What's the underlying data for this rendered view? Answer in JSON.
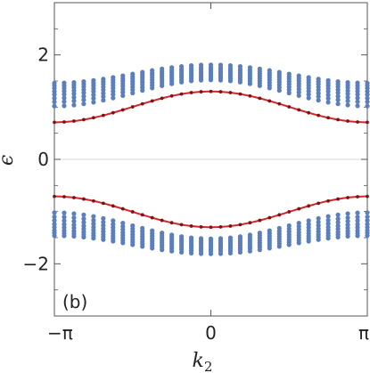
{
  "chart_data": {
    "type": "scatter",
    "panel_label": "(b)",
    "xlabel": "k",
    "xlabel_sub": "2",
    "ylabel": "ϵ",
    "xlim": [
      -3.14159,
      3.14159
    ],
    "ylim": [
      -3,
      3
    ],
    "x_ticks": [
      {
        "value": -3.14159,
        "label": "−π"
      },
      {
        "value": 0,
        "label": "0"
      },
      {
        "value": 3.14159,
        "label": "π"
      }
    ],
    "y_ticks": [
      {
        "value": -2,
        "label": "−2"
      },
      {
        "value": 0,
        "label": "0"
      },
      {
        "value": 2,
        "label": "2"
      }
    ],
    "grid": "horizontal line at 0",
    "series": [
      {
        "kind": "bulk_band_upper",
        "color": "#5b7fbd",
        "k_points": 33,
        "levels_at_k_edge": [
          1.02,
          1.1,
          1.17,
          1.24,
          1.3,
          1.36,
          1.41,
          1.46
        ],
        "levels_at_k_center": [
          1.52,
          1.56,
          1.6,
          1.64,
          1.68,
          1.72,
          1.76,
          1.81
        ]
      },
      {
        "kind": "bulk_band_lower",
        "color": "#5b7fbd",
        "k_points": 33,
        "levels_at_k_edge": [
          -1.02,
          -1.1,
          -1.17,
          -1.24,
          -1.3,
          -1.36,
          -1.41,
          -1.46
        ],
        "levels_at_k_center": [
          -1.52,
          -1.56,
          -1.6,
          -1.64,
          -1.68,
          -1.72,
          -1.76,
          -1.81
        ]
      },
      {
        "kind": "edge_state_upper",
        "color": "#d6262b",
        "k_points": 33,
        "value_at_k_edge": 0.71,
        "value_at_k_center": 1.3
      },
      {
        "kind": "edge_state_lower",
        "color": "#d6262b",
        "k_points": 33,
        "value_at_k_edge": -0.71,
        "value_at_k_center": -1.3
      }
    ]
  }
}
